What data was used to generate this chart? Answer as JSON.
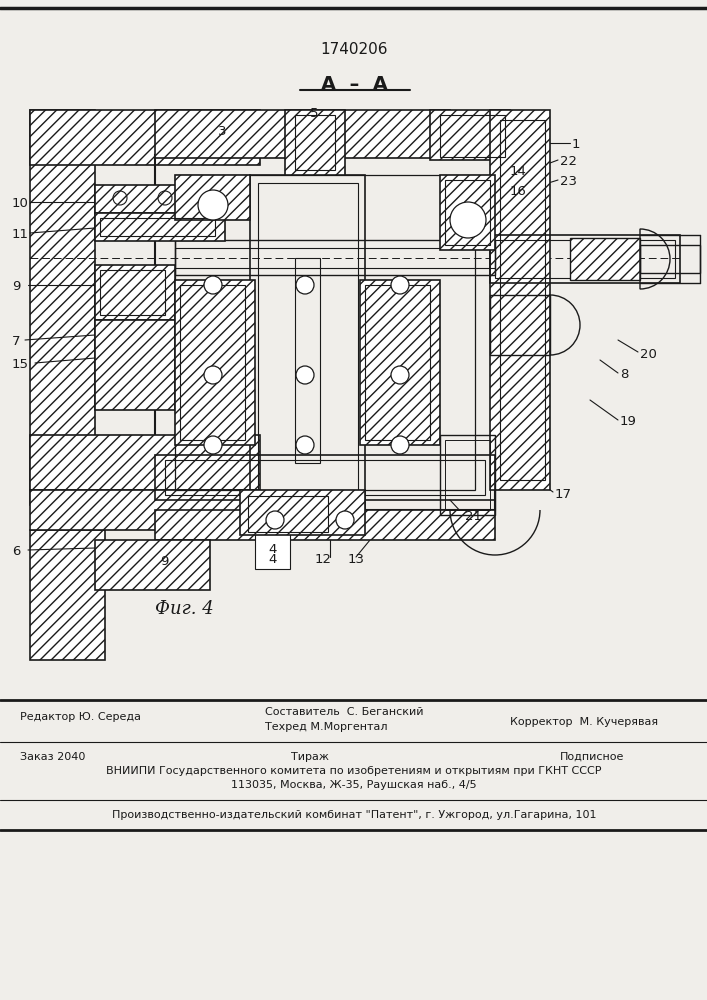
{
  "patent_number": "1740206",
  "section_label": "А  –  А",
  "figure_label": "Фиг. 4",
  "bg_color": "#f0eeea",
  "lc": "#1a1a1a",
  "footer": {
    "editor": "Редактор Ю. Середа",
    "composer": "Составитель  С. Беганский",
    "techred": "Техред М.Моргентал",
    "corrector": "Корректор  М. Кучерявая",
    "order": "Заказ 2040",
    "tirazh": "Тираж",
    "podpisnoe": "Подписное",
    "vniip1": "ВНИИПИ Государственного комитета по изобретениям и открытиям при ГКНТ СССР",
    "vniip2": "113035, Москва, Ж-35, Раушская наб., 4/5",
    "plant": "Производственно-издательский комбинат \"Патент\", г. Ужгород, ул.Гагарина, 101"
  }
}
